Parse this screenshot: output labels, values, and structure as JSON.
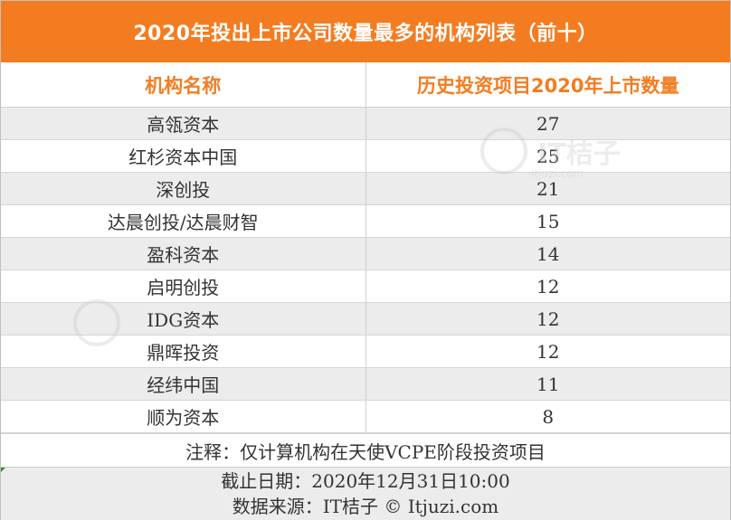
{
  "title": "2020年投出上市公司数量最多的机构列表（前十）",
  "header": {
    "col1": "机构名称",
    "col2": "历史投资项目2020年上市数量"
  },
  "chart_data": {
    "type": "table",
    "title": "2020年投出上市公司数量最多的机构列表（前十）",
    "columns": [
      "机构名称",
      "历史投资项目2020年上市数量"
    ],
    "rows": [
      {
        "name": "高瓴资本",
        "value": "27"
      },
      {
        "name": "红杉资本中国",
        "value": "25"
      },
      {
        "name": "深创投",
        "value": "21"
      },
      {
        "name": "达晨创投/达晨财智",
        "value": "15"
      },
      {
        "name": "盈科资本",
        "value": "14"
      },
      {
        "name": "启明创投",
        "value": "12"
      },
      {
        "name": "IDG资本",
        "value": "12"
      },
      {
        "name": "鼎晖投资",
        "value": "12"
      },
      {
        "name": "经纬中国",
        "value": "11"
      },
      {
        "name": "顺为资本",
        "value": "8"
      }
    ]
  },
  "note": "注释：仅计算机构在天使VCPE阶段投资项目",
  "footer": {
    "deadline": "截止日期：2020年12月31日10:00",
    "source": "数据来源：IT桔子 © Itjuzi.com"
  },
  "watermarks": {
    "brand": "IT桔子",
    "site": "itjuzi.com"
  },
  "colors": {
    "accent": "#f47c20",
    "stripe": "#ececec"
  }
}
